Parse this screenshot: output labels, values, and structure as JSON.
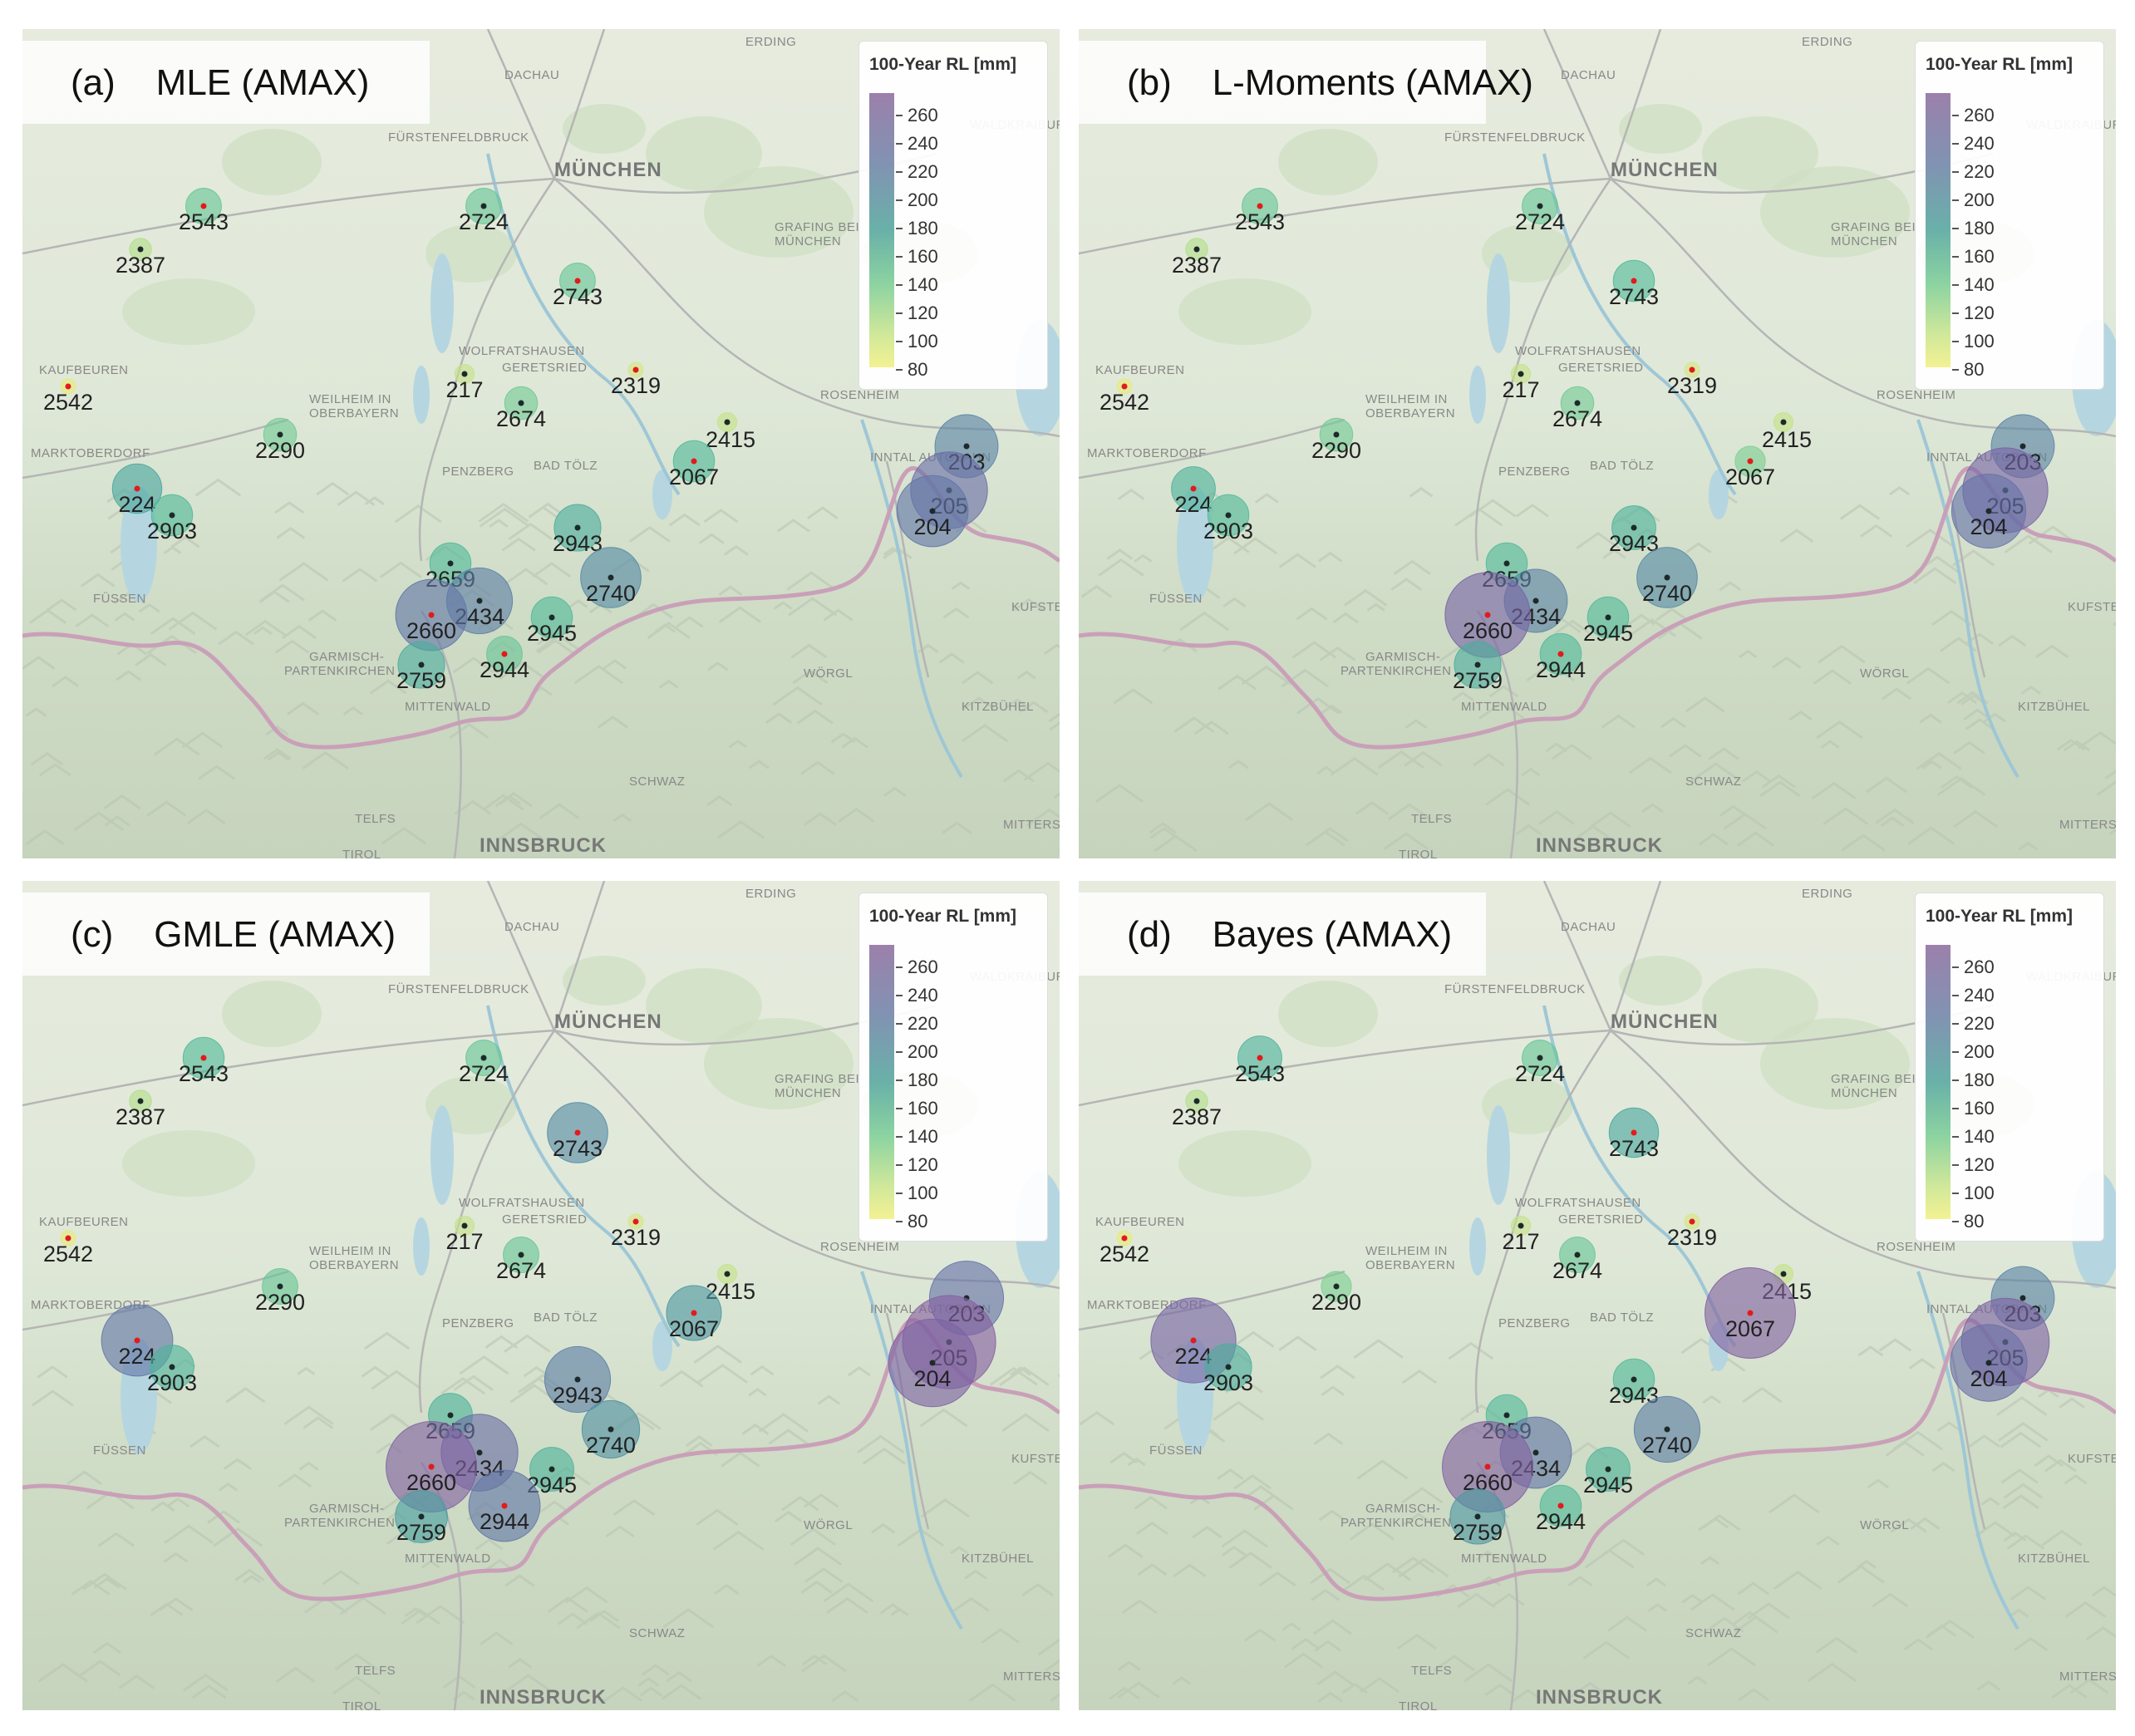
{
  "panels": [
    {
      "id": "a",
      "title": "(a)    MLE (AMAX)",
      "colorbar": "100-Year RL [mm]",
      "rl": {
        "203": 200,
        "204": 215,
        "205": 225,
        "217": 120,
        "224": 175,
        "2290": 145,
        "2319": 110,
        "2387": 125,
        "2415": 120,
        "2434": 205,
        "2542": 100,
        "2543": 150,
        "2659": 160,
        "2660": 215,
        "2674": 145,
        "2724": 150,
        "2740": 195,
        "2743": 150,
        "2759": 170,
        "2903": 160,
        "2943": 170,
        "2944": 150,
        "2945": 160,
        "2067": 160
      }
    },
    {
      "id": "b",
      "title": "(b)    L-Moments (AMAX)",
      "colorbar": "100-Year RL [mm]",
      "rl": {
        "203": 200,
        "204": 220,
        "205": 240,
        "217": 120,
        "224": 165,
        "2290": 145,
        "2319": 110,
        "2387": 125,
        "2415": 120,
        "2434": 200,
        "2542": 100,
        "2543": 150,
        "2659": 160,
        "2660": 240,
        "2674": 145,
        "2724": 150,
        "2740": 195,
        "2743": 160,
        "2759": 170,
        "2903": 160,
        "2943": 165,
        "2944": 160,
        "2945": 160,
        "2067": 140
      }
    },
    {
      "id": "c",
      "title": "(c)    GMLE (AMAX)",
      "colorbar": "100-Year RL [mm]",
      "rl": {
        "203": 220,
        "204": 245,
        "205": 255,
        "217": 120,
        "224": 215,
        "2290": 150,
        "2319": 110,
        "2387": 125,
        "2415": 120,
        "2434": 225,
        "2542": 100,
        "2543": 160,
        "2659": 165,
        "2660": 250,
        "2674": 150,
        "2724": 150,
        "2740": 190,
        "2743": 195,
        "2759": 180,
        "2903": 165,
        "2943": 205,
        "2944": 215,
        "2945": 165,
        "2067": 185
      }
    },
    {
      "id": "d",
      "title": "(d)    Bayes (AMAX)",
      "colorbar": "100-Year RL [mm]",
      "rl": {
        "203": 200,
        "204": 225,
        "205": 245,
        "217": 120,
        "224": 240,
        "2290": 140,
        "2319": 110,
        "2387": 125,
        "2415": 120,
        "2434": 215,
        "2542": 100,
        "2543": 165,
        "2659": 160,
        "2660": 250,
        "2674": 150,
        "2724": 150,
        "2740": 205,
        "2743": 175,
        "2759": 185,
        "2903": 170,
        "2943": 160,
        "2944": 160,
        "2945": 165,
        "2067": 250
      }
    }
  ],
  "colorbar_ticks": [
    "260",
    "240",
    "220",
    "200",
    "180",
    "160",
    "140",
    "120",
    "100",
    "80"
  ],
  "stations": [
    {
      "id": "2543",
      "label": "2543"
    },
    {
      "id": "2724",
      "label": "2724"
    },
    {
      "id": "2387",
      "label": "2387"
    },
    {
      "id": "2743",
      "label": "2743"
    },
    {
      "id": "2542",
      "label": "2542"
    },
    {
      "id": "217",
      "label": "217"
    },
    {
      "id": "2319",
      "label": "2319"
    },
    {
      "id": "2674",
      "label": "2674"
    },
    {
      "id": "2290",
      "label": "2290"
    },
    {
      "id": "2415",
      "label": "2415"
    },
    {
      "id": "203",
      "label": "203"
    },
    {
      "id": "2067",
      "label": "2067"
    },
    {
      "id": "224",
      "label": "224"
    },
    {
      "id": "2903",
      "label": "2903"
    },
    {
      "id": "205",
      "label": "205"
    },
    {
      "id": "204",
      "label": "204"
    },
    {
      "id": "2943",
      "label": "2943"
    },
    {
      "id": "2659",
      "label": "2659"
    },
    {
      "id": "2740",
      "label": "2740"
    },
    {
      "id": "2434",
      "label": "2434"
    },
    {
      "id": "2660",
      "label": "2660"
    },
    {
      "id": "2945",
      "label": "2945"
    },
    {
      "id": "2944",
      "label": "2944"
    },
    {
      "id": "2759",
      "label": "2759"
    }
  ],
  "places": [
    {
      "name": "ERDING"
    },
    {
      "name": "DACHAU"
    },
    {
      "name": "FÜRSTENFELDBRUCK"
    },
    {
      "name": "MÜNCHEN"
    },
    {
      "name": "GRAFING BEI"
    },
    {
      "name": "MÜNCHEN"
    },
    {
      "name": "WOLFRATSHAUSEN"
    },
    {
      "name": "GERETSRIED"
    },
    {
      "name": "KAUFBEUREN"
    },
    {
      "name": "WEILHEIM IN"
    },
    {
      "name": "OBERBAYERN"
    },
    {
      "name": "ROSENHEIM"
    },
    {
      "name": "MARKTOBERDORF"
    },
    {
      "name": "PENZBERG"
    },
    {
      "name": "BAD TÖLZ"
    },
    {
      "name": "INNTAL AUTOBAHN"
    },
    {
      "name": "FÜSSEN"
    },
    {
      "name": "KUFSTEIN"
    },
    {
      "name": "GARMISCH-"
    },
    {
      "name": "PARTENKIRCHEN"
    },
    {
      "name": "WÖRGL"
    },
    {
      "name": "MITTENWALD"
    },
    {
      "name": "KITZBÜHEL"
    },
    {
      "name": "SCHWAZ"
    },
    {
      "name": "TELFS"
    },
    {
      "name": "INNSBRUCK"
    },
    {
      "name": "MITTERS"
    },
    {
      "name": "WALDKRAIBURG"
    },
    {
      "name": "TIROL"
    }
  ]
}
